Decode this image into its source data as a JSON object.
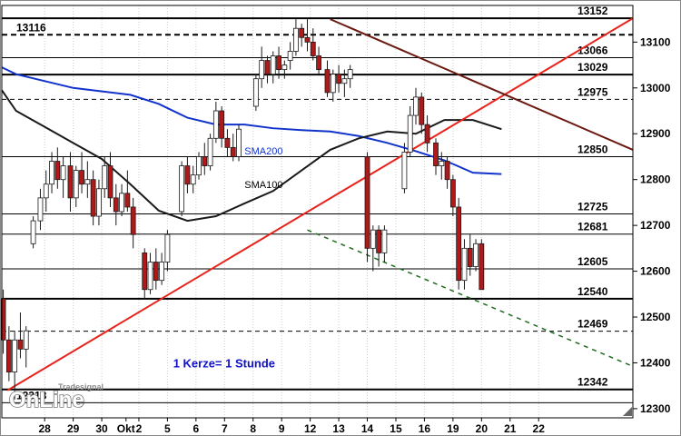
{
  "chart_data": {
    "type": "candlestick",
    "ylim": [
      12280,
      13180
    ],
    "x_range": [
      -1.5,
      20.6
    ],
    "y_ticks": [
      12300,
      12400,
      12500,
      12600,
      12700,
      12800,
      12900,
      13000,
      13100
    ],
    "x_days": [
      {
        "label": "28",
        "pos": 0.0
      },
      {
        "label": "29",
        "pos": 1.0
      },
      {
        "label": "30",
        "pos": 2.0
      },
      {
        "label": "Okt",
        "pos": 2.85
      },
      {
        "label": "2",
        "pos": 3.3
      },
      {
        "label": "5",
        "pos": 4.3
      },
      {
        "label": "6",
        "pos": 5.3
      },
      {
        "label": "7",
        "pos": 6.3
      },
      {
        "label": "8",
        "pos": 7.3
      },
      {
        "label": "9",
        "pos": 8.3
      },
      {
        "label": "12",
        "pos": 9.3
      },
      {
        "label": "13",
        "pos": 10.3
      },
      {
        "label": "14",
        "pos": 11.3
      },
      {
        "label": "15",
        "pos": 12.3
      },
      {
        "label": "16",
        "pos": 13.3
      },
      {
        "label": "19",
        "pos": 14.3
      },
      {
        "label": "20",
        "pos": 15.3
      },
      {
        "label": "21",
        "pos": 16.3
      },
      {
        "label": "22",
        "pos": 17.3
      }
    ],
    "levels": [
      {
        "value": 13152,
        "label": "13152",
        "style": "solid-bold"
      },
      {
        "value": 13116,
        "label": "13116",
        "style": "dashed-bold"
      },
      {
        "value": 13066,
        "label": "13066",
        "style": "solid"
      },
      {
        "value": 13029,
        "label": "13029",
        "style": "solid-bold"
      },
      {
        "value": 12975,
        "label": "12975",
        "style": "dashed"
      },
      {
        "value": 12850,
        "label": "12850",
        "style": "solid"
      },
      {
        "value": 12725,
        "label": "12725",
        "style": "solid"
      },
      {
        "value": 12681,
        "label": "12681",
        "style": "solid"
      },
      {
        "value": 12605,
        "label": "12605",
        "style": "solid"
      },
      {
        "value": 12540,
        "label": "12540",
        "style": "solid-bold"
      },
      {
        "value": 12469,
        "label": "12469",
        "style": "dashed"
      },
      {
        "value": 12342,
        "label": "12342",
        "style": "solid-bold"
      },
      {
        "value": 12313,
        "label": "12313",
        "style": "solid"
      }
    ],
    "trendlines": [
      {
        "name": "uptrend",
        "color": "#e8231c",
        "style": "solid",
        "x1": -1.3,
        "y1": 12340,
        "x2": 20.6,
        "y2": 13152
      },
      {
        "name": "downtrend",
        "color": "#6b1a12",
        "style": "solid",
        "x1": 10.0,
        "y1": 13150,
        "x2": 20.6,
        "y2": 12865
      },
      {
        "name": "lower-dashed",
        "color": "#1e6b1e",
        "style": "dashed",
        "x1": 9.2,
        "y1": 12690,
        "x2": 20.5,
        "y2": 12395
      }
    ],
    "sma_lines": [
      {
        "name": "SMA200",
        "color": "#1133cc",
        "points": [
          [
            -1.5,
            13045
          ],
          [
            -1,
            13030
          ],
          [
            1,
            13000
          ],
          [
            3,
            12985
          ],
          [
            4,
            12965
          ],
          [
            5,
            12935
          ],
          [
            6,
            12920
          ],
          [
            7,
            12920
          ],
          [
            8,
            12912
          ],
          [
            9,
            12908
          ],
          [
            10,
            12905
          ],
          [
            11,
            12895
          ],
          [
            12,
            12880
          ],
          [
            13,
            12862
          ],
          [
            14,
            12842
          ],
          [
            15,
            12815
          ],
          [
            16,
            12812
          ]
        ]
      },
      {
        "name": "SMA100",
        "color": "#1a1a1a",
        "points": [
          [
            -1.5,
            12995
          ],
          [
            -1,
            12950
          ],
          [
            0,
            12915
          ],
          [
            1,
            12880
          ],
          [
            2,
            12845
          ],
          [
            3,
            12790
          ],
          [
            4,
            12732
          ],
          [
            5,
            12710
          ],
          [
            6,
            12720
          ],
          [
            7,
            12748
          ],
          [
            8,
            12775
          ],
          [
            9,
            12820
          ],
          [
            10,
            12865
          ],
          [
            11,
            12890
          ],
          [
            12,
            12905
          ],
          [
            13,
            12900
          ],
          [
            14,
            12930
          ],
          [
            15,
            12930
          ],
          [
            16,
            12910
          ]
        ]
      }
    ],
    "candles": [
      [
        12540,
        12560,
        12420,
        12450
      ],
      [
        12450,
        12480,
        12360,
        12380
      ],
      [
        12380,
        12470,
        12320,
        12450
      ],
      [
        12450,
        12510,
        12410,
        12430
      ],
      [
        12430,
        12480,
        12390,
        12470
      ],
      [
        12660,
        12720,
        12650,
        12710
      ],
      [
        12710,
        12780,
        12690,
        12760
      ],
      [
        12760,
        12820,
        12730,
        12790
      ],
      [
        12790,
        12860,
        12770,
        12840
      ],
      [
        12840,
        12870,
        12780,
        12800
      ],
      [
        12800,
        12850,
        12760,
        12830
      ],
      [
        12830,
        12860,
        12730,
        12760
      ],
      [
        12760,
        12830,
        12740,
        12820
      ],
      [
        12820,
        12860,
        12770,
        12790
      ],
      [
        12790,
        12840,
        12760,
        12800
      ],
      [
        12800,
        12820,
        12700,
        12720
      ],
      [
        12720,
        12800,
        12700,
        12780
      ],
      [
        12780,
        12850,
        12760,
        12830
      ],
      [
        12830,
        12860,
        12740,
        12760
      ],
      [
        12760,
        12790,
        12700,
        12730
      ],
      [
        12730,
        12790,
        12720,
        12770
      ],
      [
        12770,
        12820,
        12730,
        12740
      ],
      [
        12740,
        12760,
        12650,
        12680
      ],
      [
        12640,
        12650,
        12540,
        12560
      ],
      [
        12560,
        12640,
        12550,
        12620
      ],
      [
        12620,
        12650,
        12560,
        12580
      ],
      [
        12580,
        12640,
        12570,
        12620
      ],
      [
        12620,
        12690,
        12600,
        12680
      ],
      [
        12730,
        12840,
        12720,
        12830
      ],
      [
        12830,
        12850,
        12770,
        12790
      ],
      [
        12790,
        12830,
        12770,
        12810
      ],
      [
        12810,
        12860,
        12800,
        12850
      ],
      [
        12850,
        12880,
        12810,
        12830
      ],
      [
        12830,
        12900,
        12820,
        12890
      ],
      [
        12890,
        12970,
        12880,
        12950
      ],
      [
        12950,
        12960,
        12870,
        12890
      ],
      [
        12890,
        12910,
        12850,
        12870
      ],
      [
        12870,
        12900,
        12840,
        12850
      ],
      [
        12850,
        12920,
        12840,
        12910
      ],
      [
        12960,
        13030,
        12950,
        13020
      ],
      [
        13020,
        13090,
        13000,
        13060
      ],
      [
        13060,
        13070,
        13010,
        13030
      ],
      [
        13030,
        13080,
        13010,
        13070
      ],
      [
        13070,
        13090,
        13020,
        13040
      ],
      [
        13040,
        13060,
        13020,
        13050
      ],
      [
        13060,
        13100,
        13040,
        13080
      ],
      [
        13080,
        13150,
        13070,
        13130
      ],
      [
        13130,
        13140,
        13090,
        13110
      ],
      [
        13110,
        13150,
        13080,
        13100
      ],
      [
        13100,
        13130,
        13060,
        13070
      ],
      [
        13070,
        13090,
        13030,
        13040
      ],
      [
        13040,
        13060,
        12980,
        12990
      ],
      [
        12990,
        13040,
        12970,
        13030
      ],
      [
        13030,
        13050,
        12990,
        13010
      ],
      [
        13010,
        13040,
        12980,
        13020
      ],
      [
        13020,
        13050,
        13000,
        13040
      ],
      [
        12850,
        12860,
        12620,
        12650
      ],
      [
        12650,
        12700,
        12600,
        12690
      ],
      [
        12690,
        12700,
        12610,
        12640
      ],
      [
        12640,
        12700,
        12620,
        12690
      ],
      [
        12780,
        12880,
        12770,
        12860
      ],
      [
        12860,
        12960,
        12850,
        12940
      ],
      [
        12940,
        13000,
        12920,
        12980
      ],
      [
        12980,
        12990,
        12900,
        12920
      ],
      [
        12920,
        12940,
        12860,
        12880
      ],
      [
        12880,
        12890,
        12810,
        12830
      ],
      [
        12830,
        12860,
        12800,
        12840
      ],
      [
        12840,
        12850,
        12780,
        12800
      ],
      [
        12800,
        12810,
        12720,
        12740
      ],
      [
        12740,
        12760,
        12560,
        12580
      ],
      [
        12580,
        12670,
        12560,
        12650
      ],
      [
        12650,
        12680,
        12590,
        12610
      ],
      [
        12610,
        12670,
        12600,
        12660
      ],
      [
        12660,
        12670,
        12560,
        12560
      ]
    ],
    "candle_positions": [
      -1.45,
      -1.25,
      -1.05,
      -0.85,
      -0.65,
      -0.4,
      -0.15,
      0.05,
      0.25,
      0.45,
      0.65,
      0.9,
      1.1,
      1.3,
      1.5,
      1.7,
      1.9,
      2.1,
      2.3,
      2.5,
      2.7,
      2.9,
      3.1,
      3.5,
      3.7,
      3.9,
      4.1,
      4.3,
      4.8,
      5.0,
      5.2,
      5.4,
      5.6,
      5.8,
      6.0,
      6.2,
      6.4,
      6.6,
      6.8,
      7.4,
      7.6,
      7.8,
      8.0,
      8.2,
      8.4,
      8.6,
      8.8,
      9.0,
      9.2,
      9.4,
      9.6,
      9.9,
      10.1,
      10.3,
      10.5,
      10.7,
      11.3,
      11.5,
      11.7,
      11.9,
      12.6,
      12.8,
      13.0,
      13.2,
      13.4,
      13.7,
      13.9,
      14.1,
      14.3,
      14.5,
      14.7,
      14.9,
      15.1,
      15.3
    ],
    "annotations": [
      {
        "text": "SMA200",
        "x": 7.0,
        "y": 12855,
        "color": "#1133cc"
      },
      {
        "text": "SMA100",
        "x": 7.0,
        "y": 12782,
        "color": "#000000"
      },
      {
        "text": "1 Kerze= 1 Stunde",
        "x": 4.5,
        "y": 12390,
        "color": "#1111cc",
        "bold": true
      }
    ],
    "logo": {
      "top": "Tradesignal",
      "bottom": "OnLine"
    }
  }
}
